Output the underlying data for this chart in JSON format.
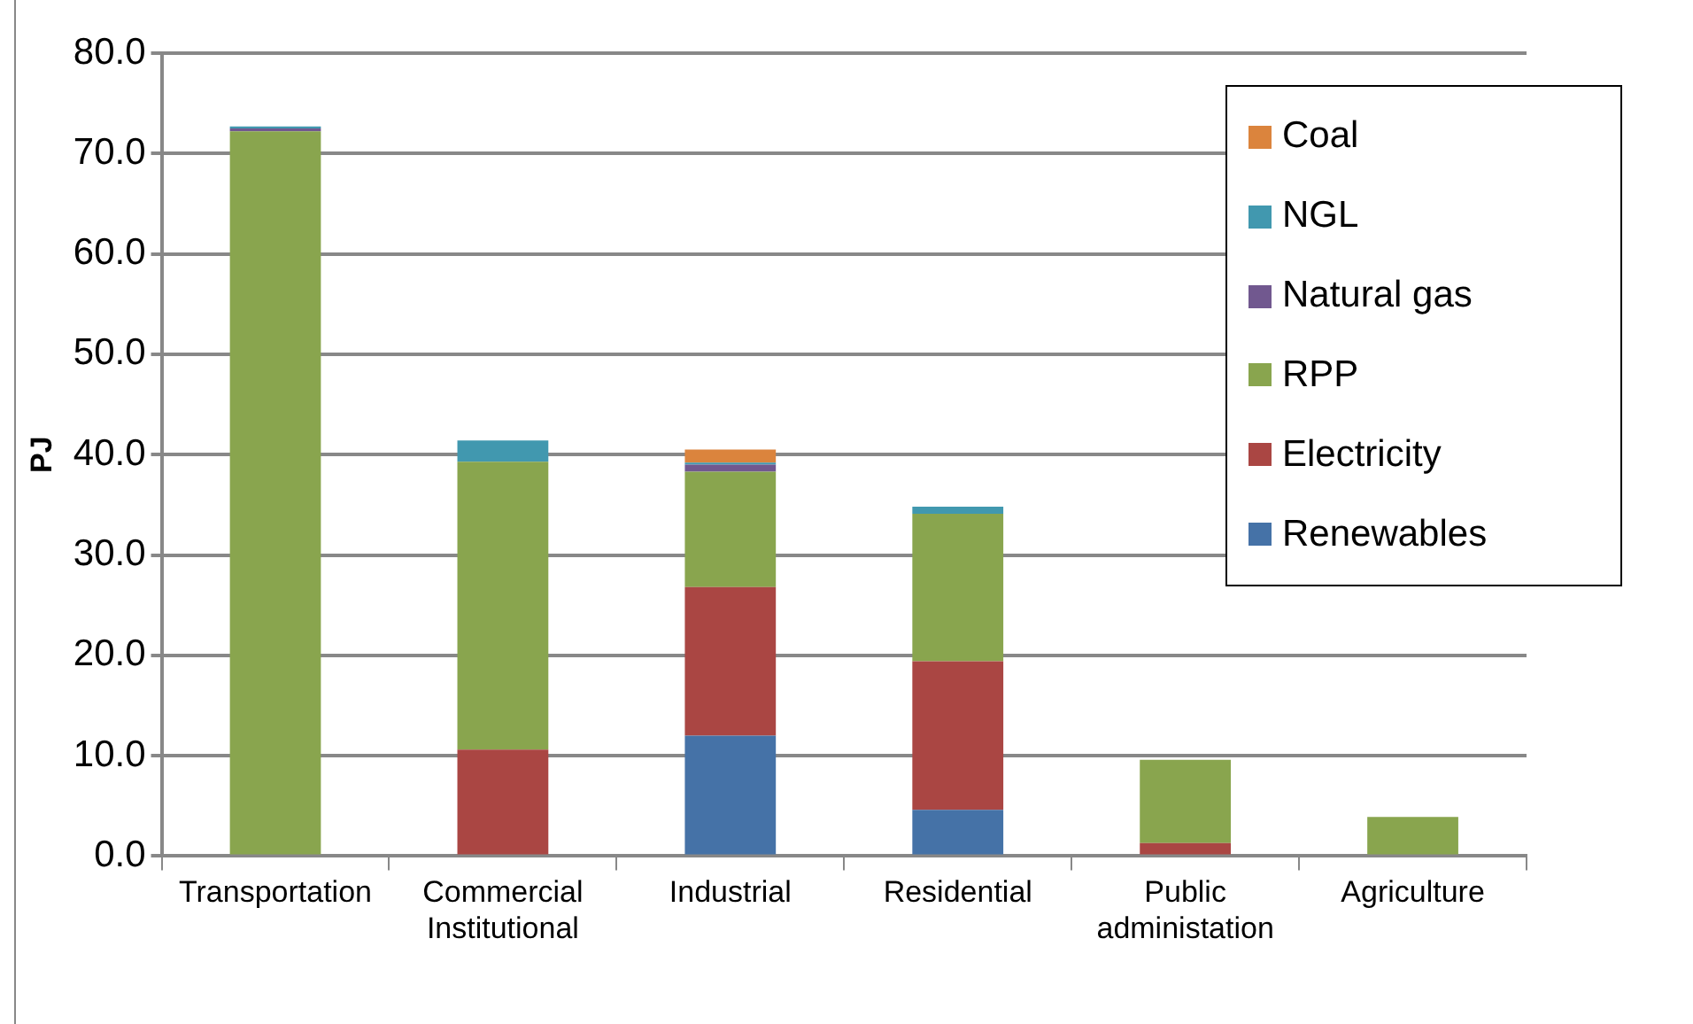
{
  "chart_data": {
    "type": "bar",
    "stacked": true,
    "ylabel": "PJ",
    "categories": [
      "Transportation",
      "Commercial Institutional",
      "Industrial",
      "Residential",
      "Public administation",
      "Agriculture"
    ],
    "series": [
      {
        "name": "Renewables",
        "color": "#4572a7",
        "values": [
          0,
          0,
          12.0,
          4.6,
          0,
          0
        ]
      },
      {
        "name": "Electricity",
        "color": "#aa4643",
        "values": [
          0,
          10.6,
          14.8,
          14.8,
          1.3,
          0
        ]
      },
      {
        "name": "RPP",
        "color": "#89a54e",
        "values": [
          72.2,
          28.7,
          11.5,
          14.7,
          8.3,
          3.9
        ]
      },
      {
        "name": "Natural gas",
        "color": "#71588f",
        "values": [
          0.3,
          0,
          0.7,
          0,
          0,
          0
        ]
      },
      {
        "name": "NGL",
        "color": "#4198af",
        "values": [
          0.2,
          2.1,
          0.2,
          0.7,
          0,
          0
        ]
      },
      {
        "name": "Coal",
        "color": "#db843d",
        "values": [
          0,
          0,
          1.3,
          0,
          0,
          0
        ]
      }
    ],
    "ylim": [
      0,
      80
    ],
    "yticks": [
      {
        "value": 0,
        "label": "0.0"
      },
      {
        "value": 10,
        "label": "10.0"
      },
      {
        "value": 20,
        "label": "20.0"
      },
      {
        "value": 30,
        "label": "30.0"
      },
      {
        "value": 40,
        "label": "40.0"
      },
      {
        "value": 50,
        "label": "50.0"
      },
      {
        "value": 60,
        "label": "60.0"
      },
      {
        "value": 70,
        "label": "70.0"
      },
      {
        "value": 80,
        "label": "80.0"
      }
    ],
    "grid": "y",
    "legend": "top right"
  }
}
